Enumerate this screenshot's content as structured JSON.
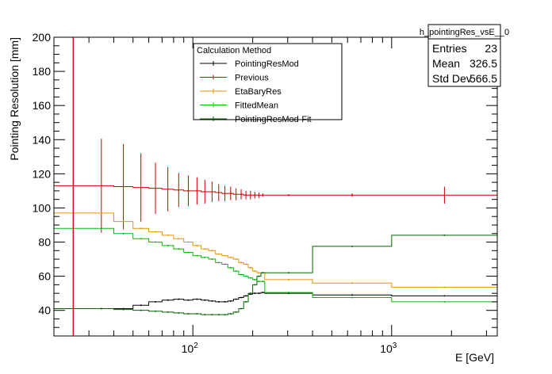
{
  "chart_data": {
    "type": "line",
    "title": "",
    "xlabel": "E [GeV]",
    "ylabel": "Pointing Resolution [mm]",
    "xscale": "log",
    "xlim": [
      20,
      3400
    ],
    "ylim": [
      25,
      200
    ],
    "x_major_ticks": [
      {
        "value": 100,
        "label": "10^2"
      },
      {
        "value": 1000,
        "label": "10^3"
      }
    ],
    "y_ticks": [
      40,
      60,
      80,
      100,
      120,
      140,
      160,
      180,
      200
    ],
    "grid": false,
    "vline": {
      "x": 25,
      "color": "#cc0000"
    },
    "legend": {
      "title": "Calculation Method",
      "placement": "top-center",
      "entries": [
        "PointingResMod",
        "Previous",
        "EtaBaryRes",
        "FittedMean",
        "PointingResMod-Fit"
      ]
    },
    "stats": {
      "name": "h_pointingRes_vsE__0",
      "placement": "top-right",
      "rows": [
        {
          "label": "Entries",
          "value": "23"
        },
        {
          "label": "Mean",
          "value": "326.5"
        },
        {
          "label": "Std Dev",
          "value": "566.5"
        }
      ]
    },
    "bin_edges": [
      30,
      40,
      50,
      60,
      70,
      80,
      90,
      100,
      110,
      120,
      130,
      140,
      150,
      160,
      170,
      180,
      190,
      200,
      210,
      220,
      230,
      400,
      1000,
      3400
    ],
    "series": [
      {
        "name": "PointingResMod",
        "color": "#000000",
        "values": [
          41,
          41,
          43,
          45,
          46,
          46.5,
          46,
          46.5,
          46,
          45.5,
          45,
          45,
          45.5,
          46.5,
          47.5,
          48.5,
          49.5,
          50,
          50,
          50.5,
          50,
          49,
          48.5
        ]
      },
      {
        "name": "Previous",
        "color": "#cc0000",
        "values": [
          113,
          112.5,
          112,
          111.5,
          111,
          110.5,
          110,
          110,
          109.5,
          109.5,
          109,
          108.5,
          108.5,
          108,
          108,
          107.5,
          107.5,
          107.5,
          107.5,
          107.5,
          107.5,
          107.5,
          107.5
        ],
        "errors": [
          27.5,
          25,
          20,
          15,
          13,
          10,
          9,
          8,
          7,
          6,
          5,
          4.5,
          4,
          3.5,
          3,
          2.5,
          2.5,
          2,
          1.5,
          1,
          0.5,
          1,
          5
        ]
      },
      {
        "name": "EtaBaryRes",
        "color": "#e69500",
        "values": [
          97,
          92,
          88,
          86,
          84,
          82,
          80,
          78,
          76,
          75,
          73,
          72,
          71,
          70,
          68,
          67,
          65,
          63,
          62,
          62,
          58,
          56,
          53.5
        ]
      },
      {
        "name": "FittedMean",
        "color": "#00bb00",
        "values": [
          88,
          85,
          82,
          80,
          78,
          76,
          74,
          72,
          71,
          70,
          68,
          67,
          65,
          63,
          61,
          60,
          59,
          58,
          57,
          57,
          50.5,
          47.5,
          45
        ]
      },
      {
        "name": "PointingResMod-Fit",
        "color": "#006600",
        "values": [
          41,
          40.5,
          40,
          39.5,
          39,
          38.5,
          38,
          38,
          37.5,
          37.5,
          37.5,
          37.5,
          38,
          39,
          41,
          45,
          50,
          55,
          60,
          62,
          62,
          77.5,
          84
        ]
      }
    ]
  }
}
